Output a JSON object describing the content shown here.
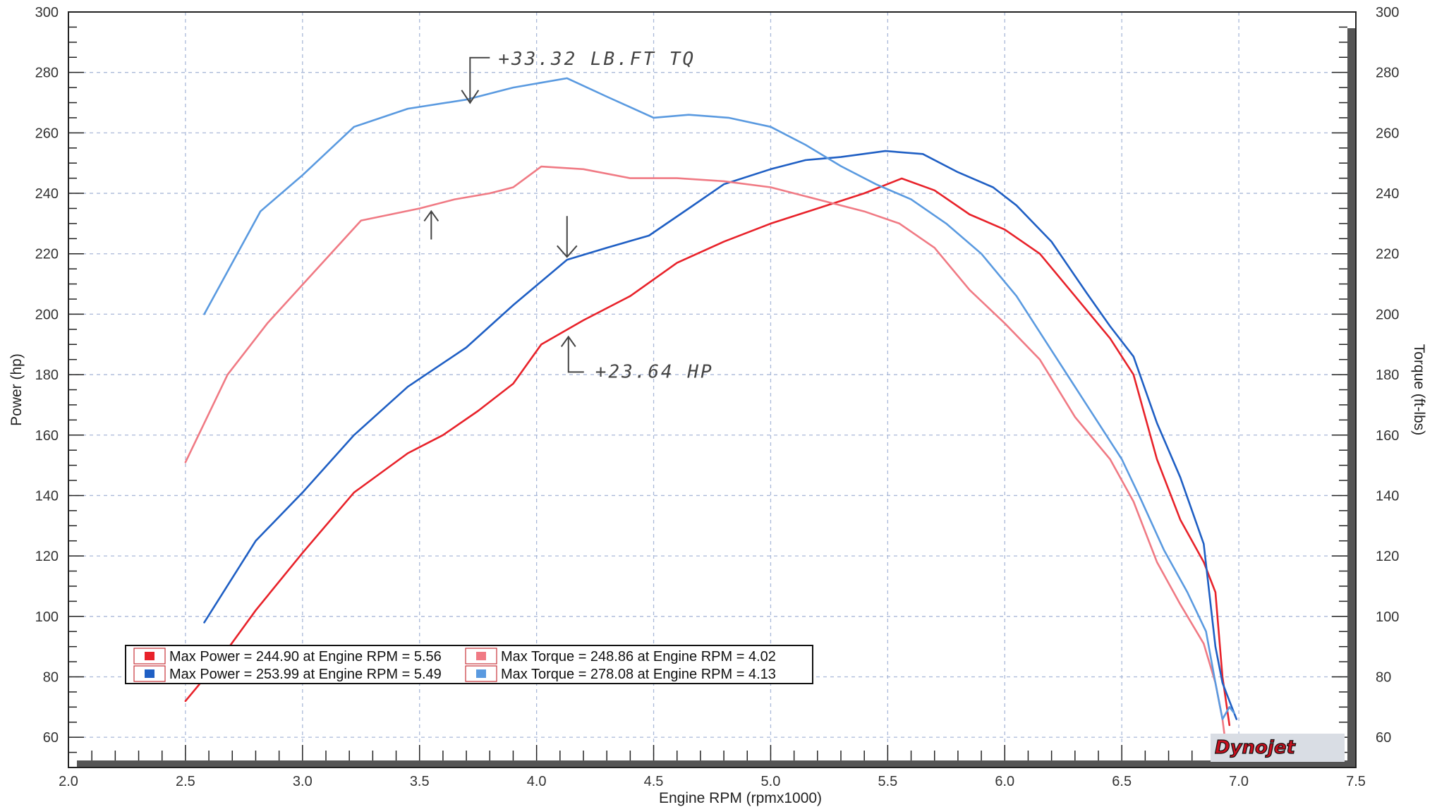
{
  "chart_data": {
    "type": "line",
    "xlabel": "Engine RPM (rpmx1000)",
    "ylabel_left": "Power (hp)",
    "ylabel_right": "Torque (ft-lbs)",
    "xlim": [
      2.0,
      7.5
    ],
    "ylim_left": [
      50,
      300
    ],
    "ylim_right": [
      50,
      300
    ],
    "x_ticks": [
      "2.0",
      "2.5",
      "3.0",
      "3.5",
      "4.0",
      "4.5",
      "5.0",
      "5.5",
      "6.0",
      "6.5",
      "7.0",
      "7.5"
    ],
    "y_ticks_left": [
      "60",
      "80",
      "100",
      "120",
      "140",
      "160",
      "180",
      "200",
      "220",
      "240",
      "260",
      "280",
      "300"
    ],
    "y_ticks_right": [
      "60",
      "80",
      "100",
      "120",
      "140",
      "160",
      "180",
      "200",
      "220",
      "240",
      "260",
      "280",
      "300"
    ],
    "grid": true,
    "colors": {
      "power_red": "#e8222a",
      "power_blue": "#1f5fc4",
      "torque_red": "#f07a84",
      "torque_blue": "#5a9ae0",
      "grid": "#a9b8d8",
      "frame": "#222222"
    },
    "series": [
      {
        "axis": "left",
        "color_key": "power_red",
        "x": [
          2.5,
          2.65,
          2.8,
          3.0,
          3.22,
          3.45,
          3.6,
          3.75,
          3.9,
          4.02,
          4.2,
          4.4,
          4.6,
          4.8,
          5.0,
          5.2,
          5.4,
          5.56,
          5.7,
          5.85,
          6.0,
          6.15,
          6.3,
          6.45,
          6.55,
          6.65,
          6.75,
          6.85,
          6.9,
          6.93,
          6.96
        ],
        "y": [
          72,
          86,
          102,
          121,
          141,
          154,
          160,
          168,
          177,
          190,
          198,
          206,
          217,
          224,
          230,
          235,
          240,
          244.9,
          241,
          233,
          228,
          220,
          206,
          192,
          180,
          152,
          132,
          118,
          108,
          80,
          64
        ]
      },
      {
        "axis": "left",
        "color_key": "power_blue",
        "x": [
          2.58,
          2.8,
          3.0,
          3.22,
          3.45,
          3.7,
          3.9,
          4.13,
          4.3,
          4.48,
          4.65,
          4.8,
          5.0,
          5.15,
          5.3,
          5.49,
          5.65,
          5.8,
          5.95,
          6.05,
          6.2,
          6.35,
          6.45,
          6.55,
          6.65,
          6.75,
          6.85,
          6.9,
          6.93,
          6.96,
          6.99
        ],
        "y": [
          98,
          125,
          141,
          160,
          176,
          189,
          203,
          218,
          222,
          226,
          235,
          243,
          248,
          251,
          252,
          253.99,
          253,
          247,
          242,
          236,
          224,
          207,
          196,
          186,
          164,
          146,
          124,
          90,
          78,
          72,
          66
        ]
      },
      {
        "axis": "right",
        "color_key": "torque_red",
        "x": [
          2.5,
          2.68,
          2.85,
          3.05,
          3.25,
          3.5,
          3.65,
          3.8,
          3.9,
          4.02,
          4.2,
          4.4,
          4.6,
          4.8,
          5.0,
          5.2,
          5.4,
          5.55,
          5.7,
          5.85,
          6.0,
          6.15,
          6.3,
          6.45,
          6.55,
          6.65,
          6.75,
          6.85,
          6.9,
          6.93,
          6.95
        ],
        "y": [
          151,
          180,
          197,
          214,
          231,
          235,
          238,
          240,
          242,
          248.86,
          248,
          245,
          245,
          244,
          242,
          238,
          234,
          230,
          222,
          208,
          197,
          185,
          166,
          152,
          138,
          118,
          104,
          91,
          78,
          66,
          54
        ]
      },
      {
        "axis": "right",
        "color_key": "torque_blue",
        "x": [
          2.58,
          2.82,
          3.0,
          3.22,
          3.45,
          3.7,
          3.9,
          4.13,
          4.3,
          4.5,
          4.65,
          4.82,
          5.0,
          5.15,
          5.3,
          5.45,
          5.6,
          5.75,
          5.9,
          6.05,
          6.2,
          6.35,
          6.5,
          6.58,
          6.68,
          6.78,
          6.86,
          6.9,
          6.93,
          6.96,
          6.98
        ],
        "y": [
          200,
          234,
          246,
          262,
          268,
          271,
          275,
          278.08,
          272,
          265,
          266,
          265,
          262,
          256,
          249,
          243,
          238,
          230,
          220,
          206,
          188,
          170,
          152,
          139,
          122,
          108,
          95,
          78,
          66,
          70,
          68
        ]
      }
    ],
    "legend": {
      "placement": "bottom-left",
      "entries": [
        {
          "text": "Max Power = 244.90 at Engine RPM = 5.56",
          "color_key": "power_red"
        },
        {
          "text": "Max Torque = 248.86 at Engine RPM = 4.02",
          "color_key": "torque_red"
        },
        {
          "text": "Max Power = 253.99 at Engine RPM = 5.49",
          "color_key": "power_blue"
        },
        {
          "text": "Max Torque = 278.08 at Engine RPM = 4.13",
          "color_key": "torque_blue"
        }
      ]
    },
    "annotations": [
      {
        "text": "+33.32 LB.FT TQ",
        "x": 3.55,
        "y": 269
      },
      {
        "text": "+23.64 HP",
        "x": 4.13,
        "y": 193
      }
    ],
    "brand_logo": {
      "text": "Dynojet",
      "placement": "bottom-right"
    }
  }
}
